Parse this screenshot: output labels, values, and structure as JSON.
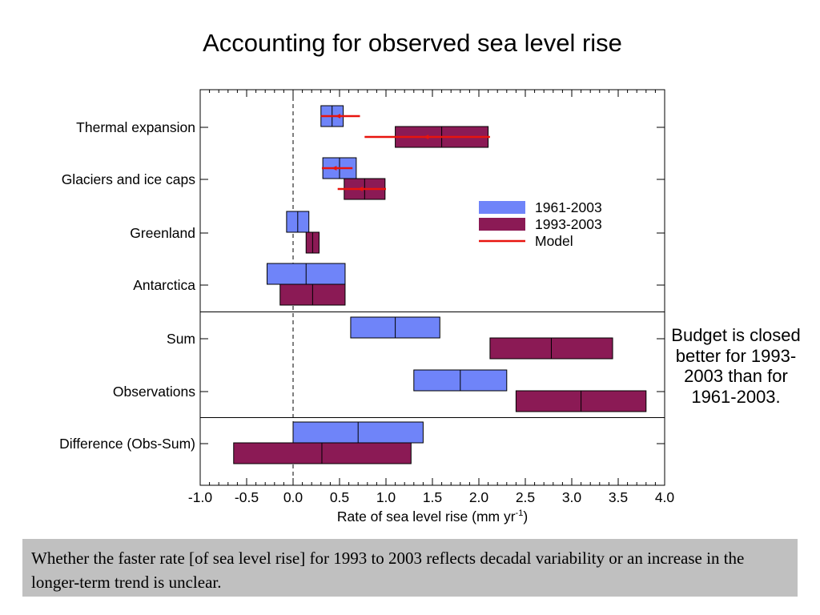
{
  "title": "Accounting for observed sea level rise",
  "side_note": "Budget is closed better for 1993-2003 than for 1961-2003.",
  "caption": "Whether the faster rate [of sea level rise] for 1993 to 2003 reflects decadal variability or an increase in the longer-term trend is unclear.",
  "colors": {
    "period_1961_2003": "#6f84f9",
    "period_1993_2003": "#8b1a55",
    "model": "#e8140e",
    "caption_background": "#c0c0c0"
  },
  "chart_data": {
    "type": "bar",
    "subtype": "horizontal range boxes with central estimate and model ranges",
    "xlabel_main": "Rate of sea level rise (mm yr",
    "xlabel_sup": "-1",
    "xlabel_close": ")",
    "xlim": [
      -1.0,
      4.0
    ],
    "x_ticks": [
      "-1.0",
      "-0.5",
      "0.0",
      "0.5",
      "1.0",
      "1.5",
      "2.0",
      "2.5",
      "3.0",
      "3.5",
      "4.0"
    ],
    "zero_line": "dashed",
    "legend_position": "upper-right",
    "categories": [
      "Thermal expansion",
      "Glaciers and ice caps",
      "Greenland",
      "Antarctica",
      "Sum",
      "Observations",
      "Difference (Obs-Sum)"
    ],
    "separators_after": [
      "Antarctica",
      "Observations"
    ],
    "series": [
      {
        "name": "1961-2003",
        "color": "#6f84f9",
        "ranges": [
          {
            "category": "Thermal expansion",
            "low": 0.3,
            "central": 0.42,
            "high": 0.54
          },
          {
            "category": "Glaciers and ice caps",
            "low": 0.32,
            "central": 0.5,
            "high": 0.68
          },
          {
            "category": "Greenland",
            "low": -0.07,
            "central": 0.05,
            "high": 0.17
          },
          {
            "category": "Antarctica",
            "low": -0.28,
            "central": 0.14,
            "high": 0.56
          },
          {
            "category": "Sum",
            "low": 0.62,
            "central": 1.1,
            "high": 1.58
          },
          {
            "category": "Observations",
            "low": 1.3,
            "central": 1.8,
            "high": 2.3
          },
          {
            "category": "Difference (Obs-Sum)",
            "low": 0.0,
            "central": 0.7,
            "high": 1.4
          }
        ]
      },
      {
        "name": "1993-2003",
        "color": "#8b1a55",
        "ranges": [
          {
            "category": "Thermal expansion",
            "low": 1.1,
            "central": 1.6,
            "high": 2.1
          },
          {
            "category": "Glaciers and ice caps",
            "low": 0.55,
            "central": 0.77,
            "high": 0.99
          },
          {
            "category": "Greenland",
            "low": 0.14,
            "central": 0.21,
            "high": 0.28
          },
          {
            "category": "Antarctica",
            "low": -0.14,
            "central": 0.21,
            "high": 0.56
          },
          {
            "category": "Sum",
            "low": 2.12,
            "central": 2.78,
            "high": 3.44
          },
          {
            "category": "Observations",
            "low": 2.4,
            "central": 3.1,
            "high": 3.8
          },
          {
            "category": "Difference (Obs-Sum)",
            "low": -0.64,
            "central": 0.31,
            "high": 1.27
          }
        ]
      },
      {
        "name": "Model",
        "color": "#e8140e",
        "ranges": [
          {
            "category": "Thermal expansion",
            "period": "1961-2003",
            "low": 0.3,
            "central": 0.5,
            "high": 0.72
          },
          {
            "category": "Thermal expansion",
            "period": "1993-2003",
            "low": 0.77,
            "central": 1.45,
            "high": 2.12
          },
          {
            "category": "Glaciers and ice caps",
            "period": "1961-2003",
            "low": 0.31,
            "central": 0.46,
            "high": 0.64
          },
          {
            "category": "Glaciers and ice caps",
            "period": "1993-2003",
            "low": 0.48,
            "central": 0.74,
            "high": 1.0
          }
        ]
      }
    ]
  }
}
